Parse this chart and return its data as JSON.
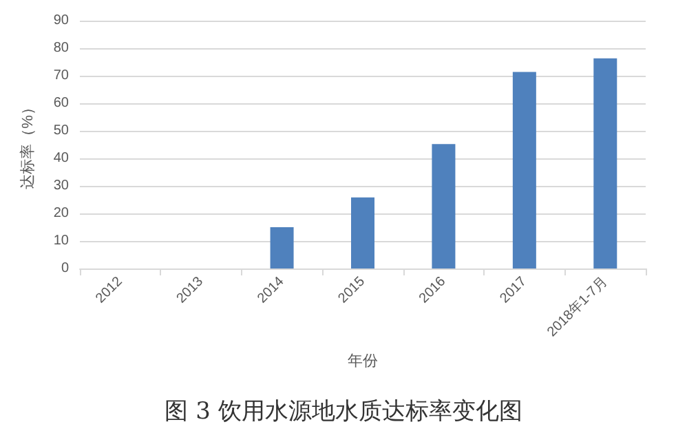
{
  "chart_data": {
    "type": "bar",
    "categories": [
      "2012",
      "2013",
      "2014",
      "2015",
      "2016",
      "2017",
      "2018年1-7月"
    ],
    "values": [
      0,
      0,
      15,
      25.8,
      45.2,
      71.4,
      76.3
    ],
    "color": "#4f81bd",
    "xlabel": "年份",
    "ylabel": "达标率（%）",
    "ylim": [
      0,
      90
    ],
    "yticks": [
      0,
      10,
      20,
      30,
      40,
      50,
      60,
      70,
      80,
      90
    ],
    "grid": "y",
    "annotations": [
      "图 3 饮用水源地水质达标率变化图"
    ]
  }
}
